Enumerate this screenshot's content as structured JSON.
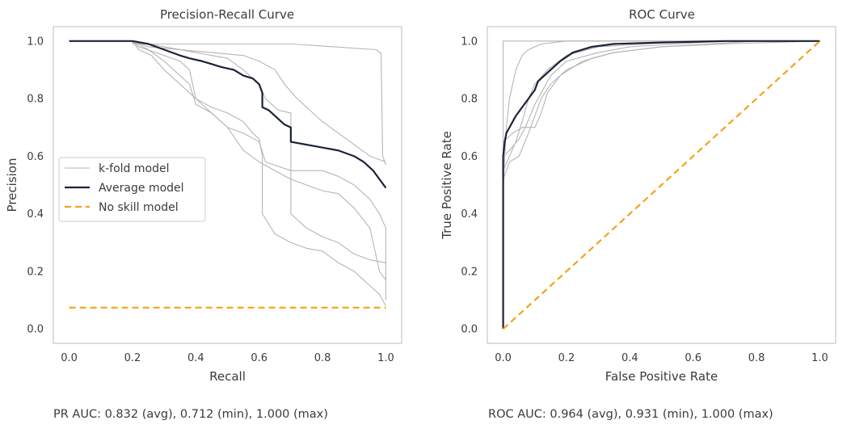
{
  "colors": {
    "fold": "#b5b5b5",
    "average": "#1b2338",
    "noskill": "#f5a31a",
    "frame": "#cccccc",
    "text": "#3b3b3b"
  },
  "footers": {
    "pr": "PR AUC: 0.832 (avg), 0.712 (min), 1.000 (max)",
    "roc": "ROC AUC: 0.964 (avg), 0.931 (min), 1.000 (max)"
  },
  "chart_data": [
    {
      "type": "line",
      "title": "Precision-Recall Curve",
      "xlabel": "Recall",
      "ylabel": "Precision",
      "xlim": [
        -0.05,
        1.05
      ],
      "ylim": [
        -0.05,
        1.05
      ],
      "xticks": [
        0.0,
        0.2,
        0.4,
        0.6,
        0.8,
        1.0
      ],
      "yticks": [
        0.0,
        0.2,
        0.4,
        0.6,
        0.8,
        1.0
      ],
      "tick_format": "0.0",
      "grid": false,
      "legend": {
        "position": "center-left",
        "entries": [
          {
            "label": "k-fold model",
            "style": "fold"
          },
          {
            "label": "Average model",
            "style": "average"
          },
          {
            "label": "No skill model",
            "style": "noskill"
          }
        ]
      },
      "series": [
        {
          "style": "fold",
          "points": [
            [
              0,
              1
            ],
            [
              0.2,
              1
            ],
            [
              0.2,
              0.99
            ],
            [
              0.7,
              0.99
            ],
            [
              0.97,
              0.97
            ],
            [
              0.98,
              0.96
            ],
            [
              0.985,
              0.96
            ],
            [
              0.99,
              0.6
            ],
            [
              1,
              0.57
            ]
          ]
        },
        {
          "style": "fold",
          "points": [
            [
              0,
              1
            ],
            [
              0.2,
              1
            ],
            [
              0.25,
              0.98
            ],
            [
              0.45,
              0.96
            ],
            [
              0.55,
              0.95
            ],
            [
              0.6,
              0.93
            ],
            [
              0.65,
              0.9
            ],
            [
              0.68,
              0.85
            ],
            [
              0.72,
              0.8
            ],
            [
              0.8,
              0.72
            ],
            [
              0.9,
              0.64
            ],
            [
              0.95,
              0.6
            ],
            [
              1,
              0.58
            ]
          ]
        },
        {
          "style": "fold",
          "points": [
            [
              0,
              1
            ],
            [
              0.2,
              1
            ],
            [
              0.22,
              0.98
            ],
            [
              0.3,
              0.95
            ],
            [
              0.35,
              0.93
            ],
            [
              0.38,
              0.9
            ],
            [
              0.4,
              0.8
            ],
            [
              0.45,
              0.75
            ],
            [
              0.5,
              0.7
            ],
            [
              0.55,
              0.68
            ],
            [
              0.6,
              0.65
            ],
            [
              0.62,
              0.58
            ],
            [
              0.7,
              0.55
            ],
            [
              0.8,
              0.55
            ],
            [
              0.85,
              0.53
            ],
            [
              0.9,
              0.5
            ],
            [
              0.95,
              0.45
            ],
            [
              0.98,
              0.4
            ],
            [
              1,
              0.35
            ],
            [
              1,
              0.1
            ]
          ]
        },
        {
          "style": "fold",
          "points": [
            [
              0,
              1
            ],
            [
              0.2,
              1
            ],
            [
              0.25,
              0.97
            ],
            [
              0.3,
              0.93
            ],
            [
              0.38,
              0.85
            ],
            [
              0.4,
              0.78
            ],
            [
              0.45,
              0.75
            ],
            [
              0.5,
              0.7
            ],
            [
              0.55,
              0.62
            ],
            [
              0.6,
              0.58
            ],
            [
              0.7,
              0.52
            ],
            [
              0.8,
              0.48
            ],
            [
              0.85,
              0.47
            ],
            [
              0.9,
              0.42
            ],
            [
              0.95,
              0.35
            ],
            [
              0.98,
              0.2
            ],
            [
              1,
              0.17
            ]
          ]
        },
        {
          "style": "fold",
          "points": [
            [
              0,
              1
            ],
            [
              0.2,
              1
            ],
            [
              0.22,
              0.97
            ],
            [
              0.26,
              0.95
            ],
            [
              0.3,
              0.9
            ],
            [
              0.38,
              0.82
            ],
            [
              0.4,
              0.8
            ],
            [
              0.45,
              0.77
            ],
            [
              0.5,
              0.75
            ],
            [
              0.55,
              0.72
            ],
            [
              0.58,
              0.68
            ],
            [
              0.6,
              0.66
            ],
            [
              0.61,
              0.6
            ],
            [
              0.61,
              0.4
            ],
            [
              0.65,
              0.33
            ],
            [
              0.7,
              0.3
            ],
            [
              0.75,
              0.28
            ],
            [
              0.8,
              0.27
            ],
            [
              0.85,
              0.23
            ],
            [
              0.9,
              0.2
            ],
            [
              0.95,
              0.15
            ],
            [
              0.98,
              0.12
            ],
            [
              1,
              0.08
            ]
          ]
        },
        {
          "style": "fold",
          "points": [
            [
              0,
              1
            ],
            [
              0.2,
              1
            ],
            [
              0.3,
              0.98
            ],
            [
              0.4,
              0.96
            ],
            [
              0.5,
              0.94
            ],
            [
              0.55,
              0.9
            ],
            [
              0.6,
              0.85
            ],
            [
              0.62,
              0.8
            ],
            [
              0.66,
              0.76
            ],
            [
              0.7,
              0.75
            ],
            [
              0.7,
              0.4
            ],
            [
              0.75,
              0.35
            ],
            [
              0.8,
              0.32
            ],
            [
              0.85,
              0.3
            ],
            [
              0.9,
              0.26
            ],
            [
              0.95,
              0.24
            ],
            [
              1,
              0.23
            ]
          ]
        },
        {
          "style": "average",
          "points": [
            [
              0,
              1
            ],
            [
              0.2,
              1
            ],
            [
              0.25,
              0.99
            ],
            [
              0.3,
              0.97
            ],
            [
              0.35,
              0.95
            ],
            [
              0.38,
              0.94
            ],
            [
              0.42,
              0.93
            ],
            [
              0.45,
              0.92
            ],
            [
              0.48,
              0.91
            ],
            [
              0.52,
              0.9
            ],
            [
              0.55,
              0.88
            ],
            [
              0.58,
              0.87
            ],
            [
              0.6,
              0.85
            ],
            [
              0.61,
              0.82
            ],
            [
              0.61,
              0.77
            ],
            [
              0.63,
              0.76
            ],
            [
              0.66,
              0.73
            ],
            [
              0.68,
              0.71
            ],
            [
              0.7,
              0.7
            ],
            [
              0.7,
              0.65
            ],
            [
              0.75,
              0.64
            ],
            [
              0.8,
              0.63
            ],
            [
              0.85,
              0.62
            ],
            [
              0.9,
              0.6
            ],
            [
              0.93,
              0.58
            ],
            [
              0.96,
              0.55
            ],
            [
              0.98,
              0.52
            ],
            [
              1,
              0.49
            ]
          ]
        },
        {
          "style": "noskill",
          "points": [
            [
              0,
              0.074
            ],
            [
              1,
              0.074
            ]
          ]
        }
      ]
    },
    {
      "type": "line",
      "title": "ROC Curve",
      "xlabel": "False Positive Rate",
      "ylabel": "True Positive Rate",
      "xlim": [
        -0.05,
        1.05
      ],
      "ylim": [
        -0.05,
        1.05
      ],
      "xticks": [
        0.0,
        0.2,
        0.4,
        0.6,
        0.8,
        1.0
      ],
      "yticks": [
        0.0,
        0.2,
        0.4,
        0.6,
        0.8,
        1.0
      ],
      "tick_format": "0.0",
      "grid": false,
      "series": [
        {
          "style": "fold",
          "points": [
            [
              0,
              0
            ],
            [
              0,
              1
            ],
            [
              1,
              1
            ]
          ]
        },
        {
          "style": "fold",
          "points": [
            [
              0,
              0
            ],
            [
              0,
              0.5
            ],
            [
              0.01,
              0.7
            ],
            [
              0.02,
              0.8
            ],
            [
              0.04,
              0.9
            ],
            [
              0.06,
              0.95
            ],
            [
              0.08,
              0.97
            ],
            [
              0.12,
              0.99
            ],
            [
              0.2,
              1
            ],
            [
              1,
              1
            ]
          ]
        },
        {
          "style": "fold",
          "points": [
            [
              0,
              0
            ],
            [
              0,
              0.55
            ],
            [
              0.02,
              0.6
            ],
            [
              0.04,
              0.65
            ],
            [
              0.06,
              0.72
            ],
            [
              0.08,
              0.8
            ],
            [
              0.1,
              0.85
            ],
            [
              0.14,
              0.9
            ],
            [
              0.2,
              0.95
            ],
            [
              0.3,
              0.98
            ],
            [
              0.45,
              0.99
            ],
            [
              0.6,
              1
            ],
            [
              1,
              1
            ]
          ]
        },
        {
          "style": "fold",
          "points": [
            [
              0,
              0
            ],
            [
              0,
              0.6
            ],
            [
              0.02,
              0.62
            ],
            [
              0.05,
              0.66
            ],
            [
              0.07,
              0.7
            ],
            [
              0.1,
              0.78
            ],
            [
              0.12,
              0.82
            ],
            [
              0.15,
              0.88
            ],
            [
              0.2,
              0.93
            ],
            [
              0.3,
              0.96
            ],
            [
              0.4,
              0.98
            ],
            [
              0.55,
              0.99
            ],
            [
              0.7,
              1
            ],
            [
              1,
              1
            ]
          ]
        },
        {
          "style": "fold",
          "points": [
            [
              0,
              0
            ],
            [
              0,
              0.65
            ],
            [
              0.03,
              0.68
            ],
            [
              0.06,
              0.7
            ],
            [
              0.1,
              0.7
            ],
            [
              0.12,
              0.75
            ],
            [
              0.14,
              0.82
            ],
            [
              0.18,
              0.88
            ],
            [
              0.25,
              0.93
            ],
            [
              0.35,
              0.96
            ],
            [
              0.5,
              0.98
            ],
            [
              0.65,
              0.99
            ],
            [
              0.8,
              1
            ],
            [
              1,
              1
            ]
          ]
        },
        {
          "style": "fold",
          "points": [
            [
              0,
              0
            ],
            [
              0,
              0.52
            ],
            [
              0.02,
              0.58
            ],
            [
              0.05,
              0.6
            ],
            [
              0.08,
              0.68
            ],
            [
              0.12,
              0.8
            ],
            [
              0.15,
              0.85
            ],
            [
              0.2,
              0.9
            ],
            [
              0.28,
              0.94
            ],
            [
              0.35,
              0.96
            ],
            [
              0.5,
              0.98
            ],
            [
              0.7,
              0.99
            ],
            [
              1,
              1
            ]
          ]
        },
        {
          "style": "average",
          "points": [
            [
              0,
              0
            ],
            [
              0,
              0.6
            ],
            [
              0.005,
              0.65
            ],
            [
              0.01,
              0.68
            ],
            [
              0.02,
              0.7
            ],
            [
              0.04,
              0.74
            ],
            [
              0.06,
              0.77
            ],
            [
              0.08,
              0.8
            ],
            [
              0.1,
              0.83
            ],
            [
              0.11,
              0.86
            ],
            [
              0.13,
              0.88
            ],
            [
              0.15,
              0.9
            ],
            [
              0.18,
              0.93
            ],
            [
              0.22,
              0.96
            ],
            [
              0.28,
              0.98
            ],
            [
              0.35,
              0.99
            ],
            [
              0.5,
              0.995
            ],
            [
              0.7,
              1
            ],
            [
              1,
              1
            ]
          ]
        },
        {
          "style": "noskill",
          "points": [
            [
              0,
              0
            ],
            [
              1,
              1
            ]
          ]
        }
      ]
    }
  ]
}
